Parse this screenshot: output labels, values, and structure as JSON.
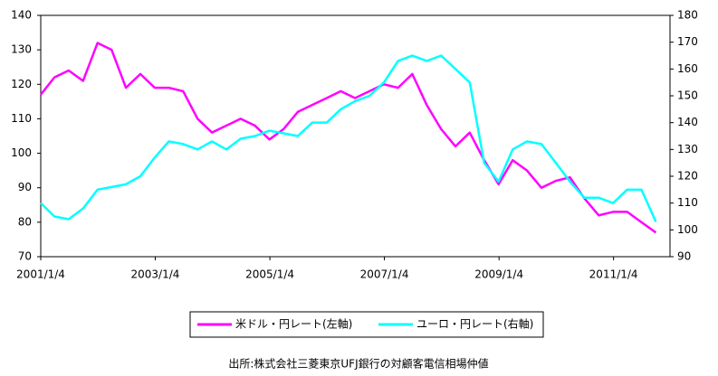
{
  "chart_data": {
    "type": "line",
    "x": [
      "2001/1/4",
      "2001/4/1",
      "2001/7/1",
      "2001/10/1",
      "2002/1/1",
      "2002/4/1",
      "2002/7/1",
      "2002/10/1",
      "2003/1/1",
      "2003/4/1",
      "2003/7/1",
      "2003/10/1",
      "2004/1/1",
      "2004/4/1",
      "2004/7/1",
      "2004/10/1",
      "2005/1/1",
      "2005/4/1",
      "2005/7/1",
      "2005/10/1",
      "2006/1/1",
      "2006/4/1",
      "2006/7/1",
      "2006/10/1",
      "2007/1/1",
      "2007/4/1",
      "2007/7/1",
      "2007/10/1",
      "2008/1/1",
      "2008/4/1",
      "2008/7/1",
      "2008/10/1",
      "2009/1/1",
      "2009/4/1",
      "2009/7/1",
      "2009/10/1",
      "2010/1/1",
      "2010/4/1",
      "2010/7/1",
      "2010/10/1",
      "2011/1/1",
      "2011/4/1",
      "2011/7/1",
      "2011/10/1"
    ],
    "series": [
      {
        "name": "米ドル・円レート(左軸)",
        "color": "#ff00ff",
        "axis": "y",
        "values": [
          117,
          122,
          124,
          121,
          132,
          130,
          119,
          123,
          119,
          119,
          118,
          110,
          106,
          108,
          110,
          108,
          104,
          107,
          112,
          114,
          116,
          118,
          116,
          118,
          120,
          119,
          123,
          114,
          107,
          102,
          106,
          98,
          91,
          98,
          95,
          90,
          92,
          93,
          87,
          82,
          83,
          83,
          80,
          77
        ]
      },
      {
        "name": "ユーロ・円レート(右軸)",
        "color": "#00ffff",
        "axis": "y2",
        "values": [
          110,
          105,
          104,
          108,
          115,
          116,
          117,
          120,
          127,
          133,
          132,
          130,
          133,
          130,
          134,
          135,
          137,
          136,
          135,
          140,
          140,
          145,
          148,
          150,
          155,
          163,
          165,
          163,
          165,
          160,
          155,
          125,
          118,
          130,
          133,
          132,
          125,
          118,
          112,
          112,
          110,
          115,
          115,
          103
        ]
      }
    ],
    "xlim": [
      "2001/1/4",
      "2011/12/30"
    ],
    "xticks": [
      "2001/1/4",
      "2003/1/4",
      "2005/1/4",
      "2007/1/4",
      "2009/1/4",
      "2011/1/4"
    ],
    "ylim": [
      70,
      140
    ],
    "yticks": [
      70,
      80,
      90,
      100,
      110,
      120,
      130,
      140
    ],
    "y2lim": [
      90,
      180
    ],
    "y2ticks": [
      90,
      100,
      110,
      120,
      130,
      140,
      150,
      160,
      170,
      180
    ],
    "source": "出所:株式会社三菱東京UFJ銀行の対顧客電信相場仲値"
  }
}
